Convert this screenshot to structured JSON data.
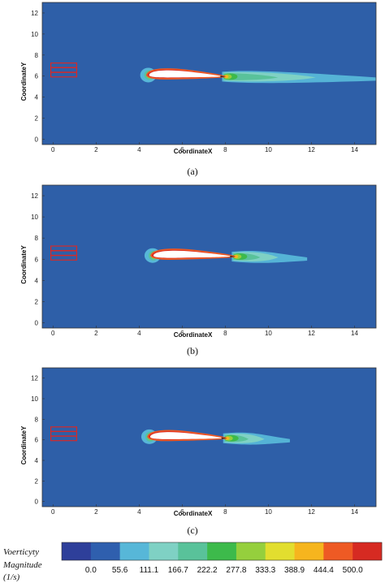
{
  "chart_data": {
    "type": "heatmap",
    "colors": {
      "background": "#2e5fa8",
      "levels": [
        "#2e3f9a",
        "#2f5fae",
        "#57b7d8",
        "#7fd1c4",
        "#59c29a",
        "#3dba4b",
        "#95cf3d",
        "#e2de2f",
        "#f6b51e",
        "#ee5a24",
        "#d62a22"
      ]
    },
    "colorbar": {
      "label_line1": "Voerticyty",
      "label_line2": "Magnitude",
      "label_line3": "(1/s)",
      "ticks": [
        "0.0",
        "55.6",
        "111.1",
        "166.7",
        "222.2",
        "277.8",
        "333.3",
        "388.9",
        "444.4",
        "500.0"
      ]
    },
    "panels": [
      {
        "caption": "(a)",
        "xlabel": "CoordinateX",
        "ylabel": "CoordinateY",
        "xlim": [
          -0.5,
          15
        ],
        "ylim": [
          -0.5,
          13
        ],
        "xticks": [
          "0",
          "2",
          "4",
          "6",
          "8",
          "10",
          "12",
          "14"
        ],
        "yticks": [
          "0",
          "2",
          "4",
          "6",
          "8",
          "10",
          "12"
        ],
        "airfoil": {
          "le_x": 4.35,
          "le_y": 6.1,
          "te_x": 8.0,
          "te_y": 5.95
        },
        "wake_end_x": 15
      },
      {
        "caption": "(b)",
        "xlabel": "CoordinateX",
        "ylabel": "CoordinateY",
        "xlim": [
          -0.5,
          15
        ],
        "ylim": [
          -0.5,
          13
        ],
        "xticks": [
          "0",
          "2",
          "4",
          "6",
          "8",
          "10",
          "12",
          "14"
        ],
        "yticks": [
          "0",
          "2",
          "4",
          "6",
          "8",
          "10",
          "12"
        ],
        "airfoil": {
          "le_x": 4.55,
          "le_y": 6.35,
          "te_x": 8.45,
          "te_y": 6.25
        },
        "wake_end_x": 11.8
      },
      {
        "caption": "(c)",
        "xlabel": "CoordinateX",
        "ylabel": "CoordinateY",
        "xlim": [
          -0.5,
          15
        ],
        "ylim": [
          -0.5,
          13
        ],
        "xticks": [
          "0",
          "2",
          "4",
          "6",
          "8",
          "10",
          "12",
          "14"
        ],
        "yticks": [
          "0",
          "2",
          "4",
          "6",
          "8",
          "10",
          "12"
        ],
        "airfoil": {
          "le_x": 4.4,
          "le_y": 6.3,
          "te_x": 8.05,
          "te_y": 6.15
        },
        "wake_end_x": 11.0
      }
    ]
  }
}
